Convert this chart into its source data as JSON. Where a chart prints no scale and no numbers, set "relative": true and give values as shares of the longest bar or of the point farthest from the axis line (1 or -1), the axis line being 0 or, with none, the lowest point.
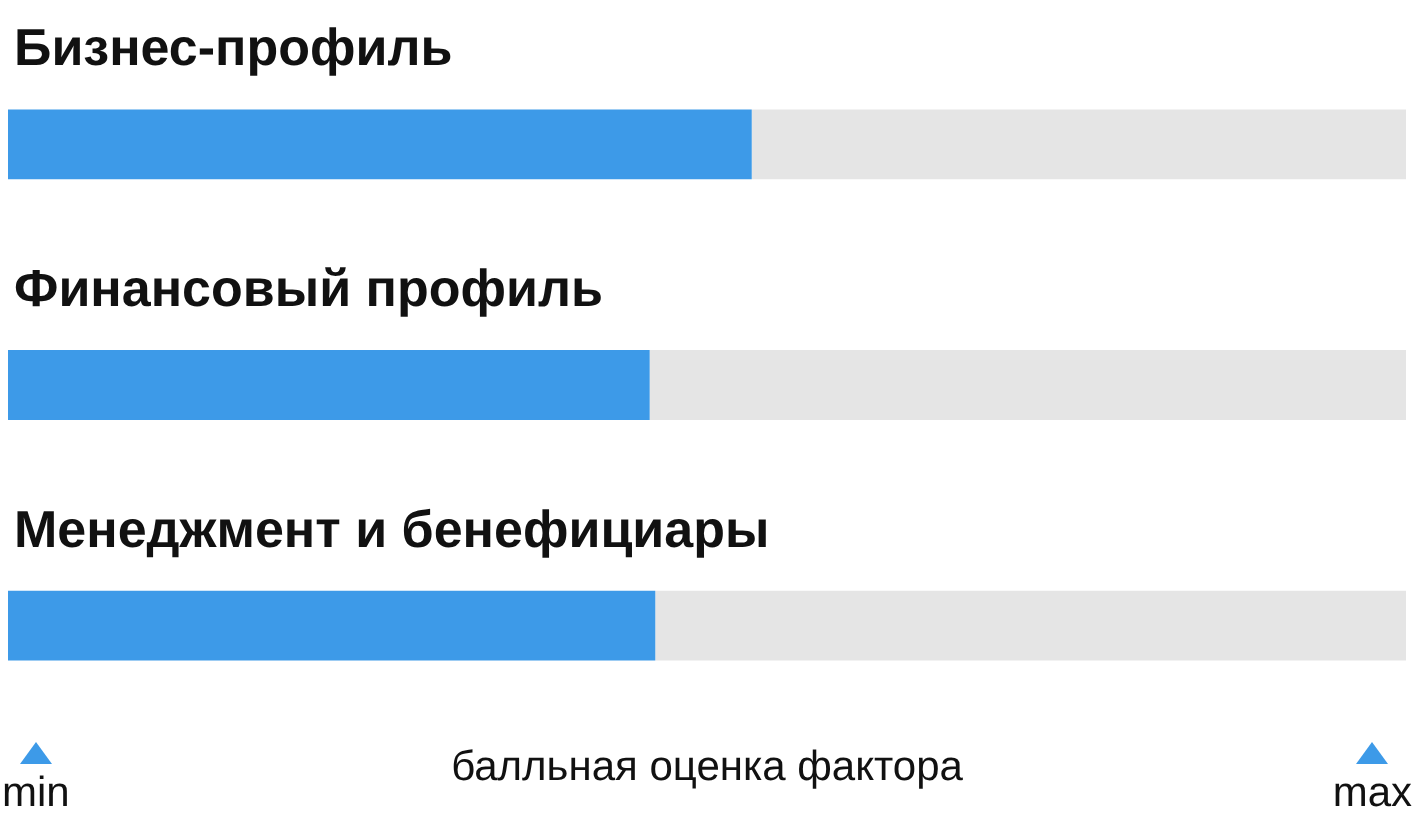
{
  "chart_data": {
    "type": "bar",
    "orientation": "horizontal",
    "relative": true,
    "stacked": true,
    "categories": [
      "Бизнес-профиль",
      "Финансовый профиль",
      "Менеджмент и бенефициары"
    ],
    "series": [
      {
        "color": "#3d9ae8",
        "values": [
          0.532,
          0.459,
          0.463
        ]
      },
      {
        "color": "#e5e5e5",
        "values": [
          0.468,
          0.541,
          0.537
        ]
      }
    ],
    "xlabel": "балльная оценка фактора",
    "annotations": [
      "min",
      "max"
    ]
  }
}
